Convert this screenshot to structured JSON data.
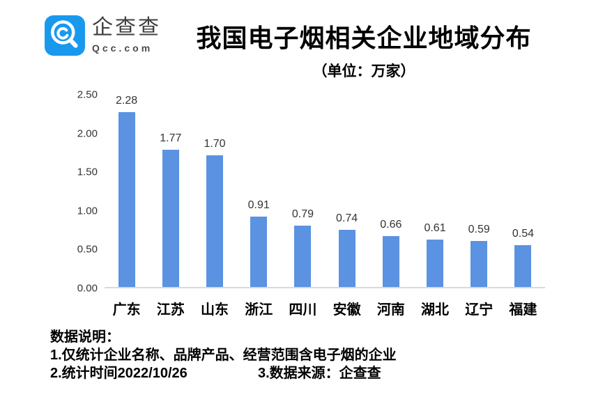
{
  "header": {
    "logo": {
      "brand_cn": "企查查",
      "brand_en": "Qcc.com",
      "brand_color": "#1899EE"
    },
    "title": "我国电子烟相关企业地域分布",
    "subtitle": "（单位：万家）"
  },
  "chart_data": {
    "type": "bar",
    "title": "我国电子烟相关企业地域分布",
    "subtitle": "（单位：万家）",
    "unit": "万家",
    "categories": [
      "广东",
      "江苏",
      "山东",
      "浙江",
      "四川",
      "安徽",
      "河南",
      "湖北",
      "辽宁",
      "福建"
    ],
    "values": [
      2.28,
      1.77,
      1.7,
      0.91,
      0.79,
      0.74,
      0.66,
      0.61,
      0.59,
      0.54
    ],
    "value_labels": [
      "2.28",
      "1.77",
      "1.70",
      "0.91",
      "0.79",
      "0.74",
      "0.66",
      "0.61",
      "0.59",
      "0.54"
    ],
    "xlabel": "",
    "ylabel": "",
    "ylim": [
      0,
      2.5
    ],
    "y_ticks": [
      "2.50",
      "2.00",
      "1.50",
      "1.00",
      "0.50",
      "0.00"
    ],
    "grid": false,
    "legend": false,
    "bar_color": "#5B92E1",
    "axis_line_color": "#D9D9D9"
  },
  "footer": {
    "heading": "数据说明：",
    "note1": "1.仅统计企业名称、品牌产品、经营范围含电子烟的企业",
    "note2": "2.统计时间2022/10/26",
    "note3": "3.数据来源：企查查"
  }
}
